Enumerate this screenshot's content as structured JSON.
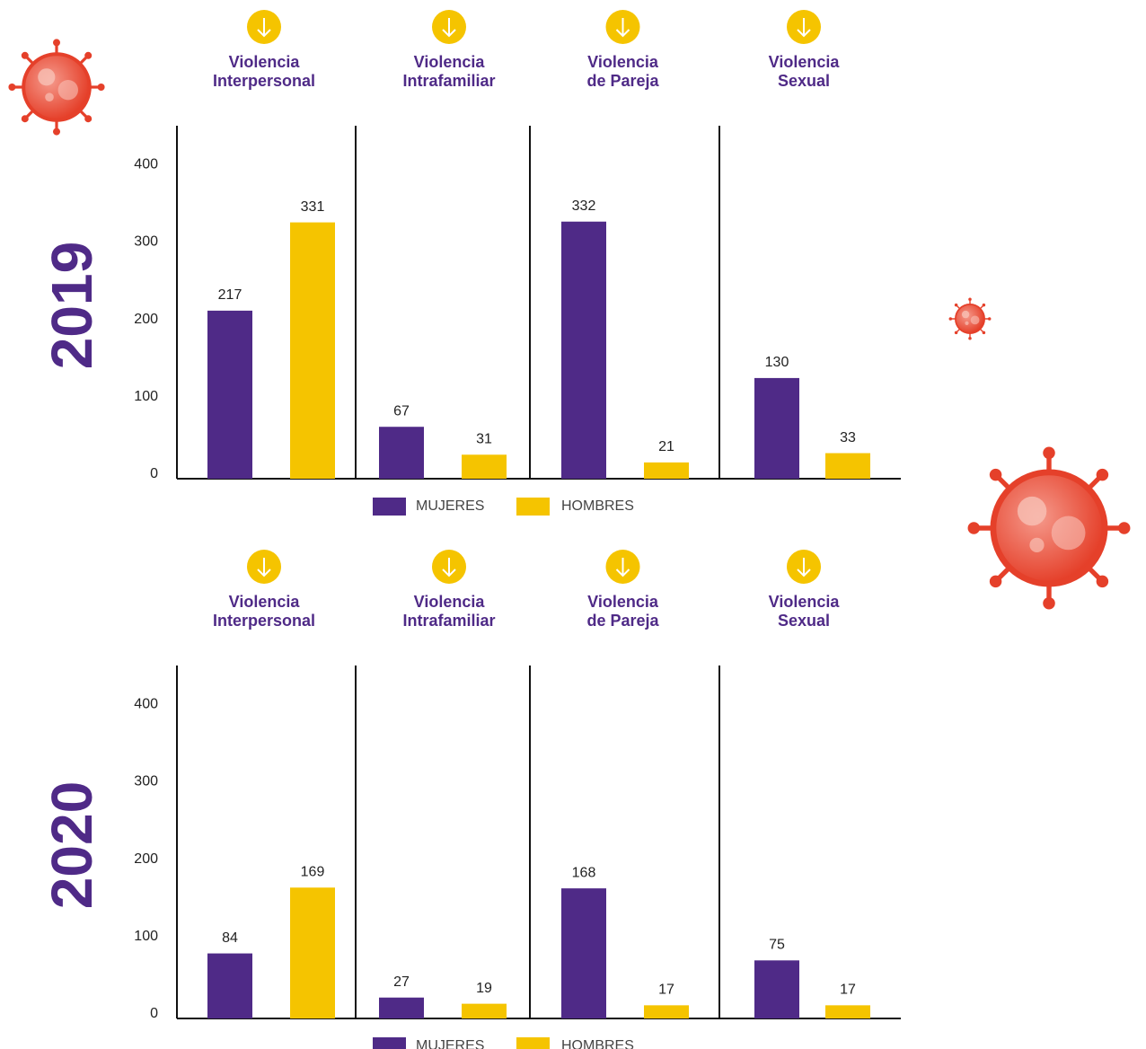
{
  "chart_data": [
    {
      "type": "bar",
      "title": "2019",
      "categories": [
        "Violencia\nInterpersonal",
        "Violencia\nIntrafamiliar",
        "Violencia\nde Pareja",
        "Violencia\nSexual"
      ],
      "series": [
        {
          "name": "MUJERES",
          "color": "#4f2a87",
          "values": [
            217,
            67,
            332,
            130
          ]
        },
        {
          "name": "HOMBRES",
          "color": "#f5c400",
          "values": [
            331,
            31,
            21,
            33
          ]
        }
      ],
      "ylim": [
        0,
        450
      ],
      "yticks": [
        0,
        100,
        200,
        300,
        400
      ],
      "legend": "bottom"
    },
    {
      "type": "bar",
      "title": "2020",
      "categories": [
        "Violencia\nInterpersonal",
        "Violencia\nIntrafamiliar",
        "Violencia\nde Pareja",
        "Violencia\nSexual"
      ],
      "series": [
        {
          "name": "MUJERES",
          "color": "#4f2a87",
          "values": [
            84,
            27,
            168,
            75
          ]
        },
        {
          "name": "HOMBRES",
          "color": "#f5c400",
          "values": [
            169,
            19,
            17,
            17
          ]
        }
      ],
      "ylim": [
        0,
        450
      ],
      "yticks": [
        0,
        100,
        200,
        300,
        400
      ],
      "legend": "bottom"
    }
  ]
}
